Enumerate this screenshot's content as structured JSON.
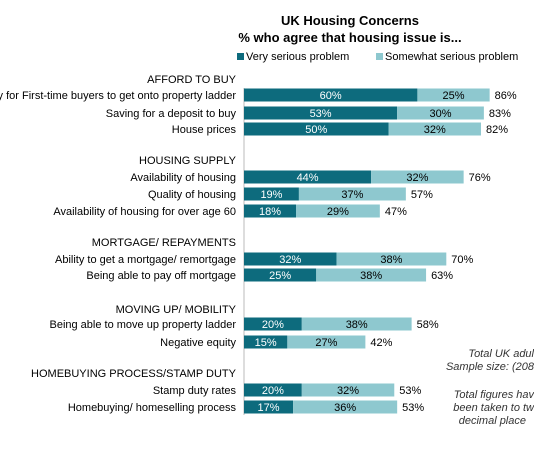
{
  "chart_data": {
    "type": "bar",
    "stacked": true,
    "orientation": "horizontal",
    "title": "UK Housing Concerns",
    "subtitle": "% who agree that housing issue is...",
    "series": [
      {
        "name": "Very serious problem",
        "color": "#0d6b7d"
      },
      {
        "name": "Somewhat serious problem",
        "color": "#8ec8cf"
      }
    ],
    "legend_position": "top",
    "groups": [
      {
        "label": "AFFORD TO BUY",
        "items": [
          {
            "label": "Ability for First-time buyers to get onto property ladder",
            "very": 60,
            "somewhat": 25,
            "total": 86,
            "very_label": "60%",
            "somewhat_label": "25%",
            "total_label": "86%"
          },
          {
            "label": "Saving for a deposit to buy",
            "very": 53,
            "somewhat": 30,
            "total": 83,
            "very_label": "53%",
            "somewhat_label": "30%",
            "total_label": "83%"
          },
          {
            "label": "House prices",
            "very": 50,
            "somewhat": 32,
            "total": 82,
            "very_label": "50%",
            "somewhat_label": "32%",
            "total_label": "82%"
          }
        ]
      },
      {
        "label": "HOUSING SUPPLY",
        "items": [
          {
            "label": "Availability of housing",
            "very": 44,
            "somewhat": 32,
            "total": 76,
            "very_label": "44%",
            "somewhat_label": "32%",
            "total_label": "76%"
          },
          {
            "label": "Quality of housing",
            "very": 19,
            "somewhat": 37,
            "total": 57,
            "very_label": "19%",
            "somewhat_label": "37%",
            "total_label": "57%"
          },
          {
            "label": "Availability of housing for over age 60",
            "very": 18,
            "somewhat": 29,
            "total": 47,
            "very_label": "18%",
            "somewhat_label": "29%",
            "total_label": "47%"
          }
        ]
      },
      {
        "label": "MORTGAGE/ REPAYMENTS",
        "items": [
          {
            "label": "Ability to get a mortgage/ remortgage",
            "very": 32,
            "somewhat": 38,
            "total": 70,
            "very_label": "32%",
            "somewhat_label": "38%",
            "total_label": "70%"
          },
          {
            "label": "Being able to pay off mortgage",
            "very": 25,
            "somewhat": 38,
            "total": 63,
            "very_label": "25%",
            "somewhat_label": "38%",
            "total_label": "63%"
          }
        ]
      },
      {
        "label": "MOVING UP/ MOBILITY",
        "items": [
          {
            "label": "Being able to move up property ladder",
            "very": 20,
            "somewhat": 38,
            "total": 58,
            "very_label": "20%",
            "somewhat_label": "38%",
            "total_label": "58%"
          },
          {
            "label": "Negative equity",
            "very": 15,
            "somewhat": 27,
            "total": 42,
            "very_label": "15%",
            "somewhat_label": "27%",
            "total_label": "42%"
          }
        ]
      },
      {
        "label": "HOMEBUYING PROCESS/STAMP DUTY",
        "items": [
          {
            "label": "Stamp duty rates",
            "very": 20,
            "somewhat": 32,
            "total": 53,
            "very_label": "20%",
            "somewhat_label": "32%",
            "total_label": "53%"
          },
          {
            "label": "Homebuying/ homeselling process",
            "very": 17,
            "somewhat": 36,
            "total": 53,
            "very_label": "17%",
            "somewhat_label": "36%",
            "total_label": "53%"
          }
        ]
      }
    ]
  },
  "notes": {
    "line1": "Total UK adul",
    "line2": "Sample size:  (208",
    "line3": "Total figures hav",
    "line4": "been taken to tw",
    "line5": "decimal place"
  }
}
